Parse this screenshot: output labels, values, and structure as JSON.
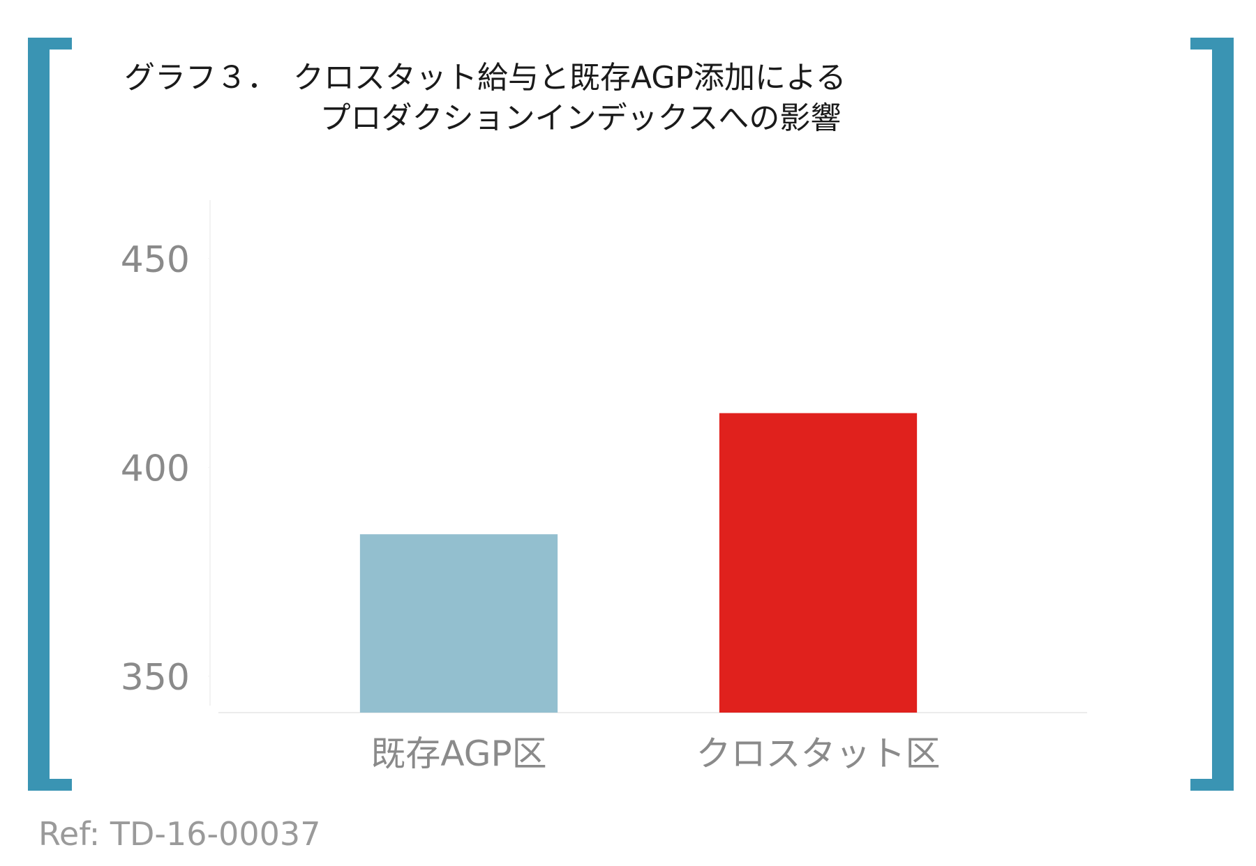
{
  "chart_data": {
    "type": "bar",
    "title_lines": [
      "グラフ３．　クロスタット給与と既存AGP添加による",
      "プロダクションインデックスへの影響"
    ],
    "categories": [
      "既存AGP区",
      "クロスタット区"
    ],
    "values": [
      384,
      413
    ],
    "colors": [
      "#93bfcf",
      "#e0211d"
    ],
    "ylim": [
      341.3,
      464
    ],
    "yticks": [
      350,
      400,
      450
    ],
    "footnote": "Ref: TD-16-00037"
  }
}
